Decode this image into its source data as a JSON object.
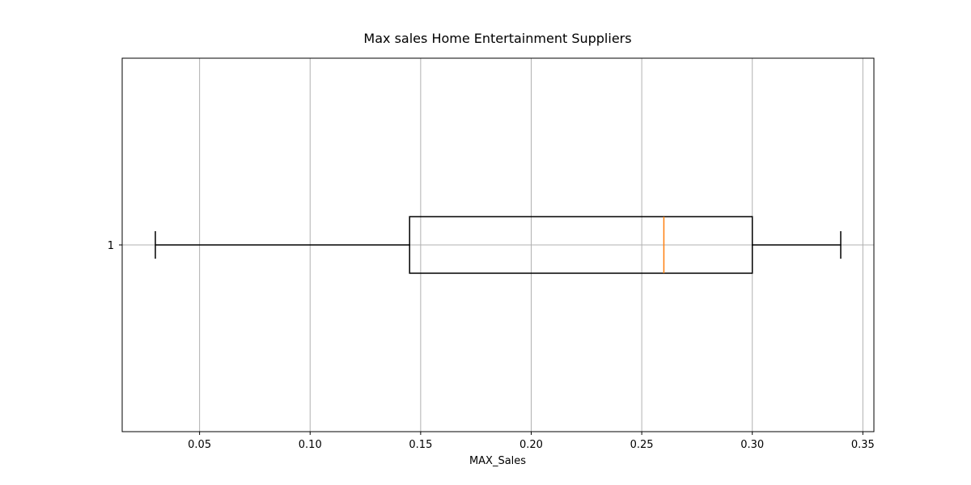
{
  "chart_data": {
    "type": "boxplot",
    "orientation": "horizontal",
    "title": "Max sales Home Entertainment Suppliers",
    "xlabel": "MAX_Sales",
    "ylabel": "",
    "xlim": [
      0.015,
      0.355
    ],
    "x_ticks": [
      0.05,
      0.1,
      0.15,
      0.2,
      0.25,
      0.3,
      0.35
    ],
    "x_tick_labels": [
      "0.05",
      "0.10",
      "0.15",
      "0.20",
      "0.25",
      "0.30",
      "0.35"
    ],
    "categories": [
      "1"
    ],
    "grid": true,
    "boxes": [
      {
        "category": "1",
        "whisker_low": 0.03,
        "q1": 0.145,
        "median": 0.26,
        "q3": 0.3,
        "whisker_high": 0.34
      }
    ],
    "colors": {
      "box": "#000000",
      "median": "#ff7f0e",
      "grid": "#b0b0b0"
    }
  }
}
